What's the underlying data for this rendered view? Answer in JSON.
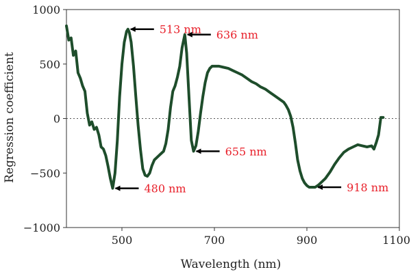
{
  "chart_data": {
    "type": "line",
    "xlabel": "Wavelength (nm)",
    "ylabel": "Regression coefficient",
    "xlim": [
      380,
      1100
    ],
    "ylim": [
      -1000,
      1000
    ],
    "x_ticks": [
      500,
      700,
      900,
      1100
    ],
    "y_ticks": [
      1000,
      500,
      0,
      -500,
      -1000
    ],
    "x_tick_labels": [
      "500",
      "700",
      "900",
      "1100"
    ],
    "y_tick_labels": [
      "1000",
      "500",
      "0",
      "−500",
      "−1000"
    ],
    "zero_line": true,
    "grid": false,
    "line_color": "#1e4d2b",
    "annotation_color": "#e8202a",
    "series": [
      {
        "x": [
          380,
          385,
          390,
          395,
          400,
          405,
          410,
          415,
          420,
          425,
          430,
          435,
          440,
          445,
          450,
          455,
          460,
          465,
          470,
          475,
          480,
          485,
          490,
          495,
          500,
          505,
          510,
          513,
          516,
          520,
          525,
          530,
          535,
          540,
          545,
          550,
          555,
          560,
          565,
          570,
          575,
          580,
          585,
          590,
          595,
          600,
          605,
          610,
          615,
          620,
          625,
          630,
          636,
          640,
          645,
          650,
          655,
          660,
          665,
          670,
          675,
          680,
          685,
          690,
          695,
          700,
          705,
          710,
          720,
          730,
          740,
          750,
          760,
          770,
          780,
          790,
          800,
          810,
          820,
          830,
          840,
          850,
          855,
          860,
          865,
          870,
          875,
          880,
          885,
          890,
          895,
          900,
          905,
          910,
          918,
          925,
          930,
          940,
          950,
          960,
          970,
          980,
          990,
          1000,
          1010,
          1020,
          1030,
          1040,
          1045,
          1050,
          1055,
          1060,
          1065
        ],
        "y": [
          850,
          720,
          740,
          580,
          620,
          420,
          370,
          300,
          250,
          50,
          -60,
          -30,
          -100,
          -80,
          -150,
          -260,
          -280,
          -340,
          -440,
          -550,
          -640,
          -500,
          -200,
          200,
          500,
          700,
          800,
          820,
          790,
          700,
          480,
          200,
          -60,
          -280,
          -460,
          -520,
          -530,
          -500,
          -430,
          -380,
          -360,
          -340,
          -320,
          -300,
          -230,
          -100,
          100,
          250,
          300,
          380,
          480,
          650,
          770,
          600,
          200,
          -200,
          -300,
          -250,
          -120,
          50,
          200,
          330,
          420,
          460,
          480,
          480,
          480,
          480,
          470,
          460,
          440,
          420,
          400,
          370,
          340,
          320,
          290,
          270,
          240,
          210,
          180,
          150,
          120,
          80,
          20,
          -80,
          -220,
          -380,
          -480,
          -550,
          -590,
          -615,
          -630,
          -630,
          -630,
          -610,
          -590,
          -550,
          -490,
          -420,
          -360,
          -310,
          -280,
          -260,
          -240,
          -250,
          -260,
          -250,
          -280,
          -220,
          -150,
          10,
          10
        ]
      }
    ],
    "annotations": [
      {
        "text": "513 nm",
        "x": 513,
        "y": 820
      },
      {
        "text": "636 nm",
        "x": 636,
        "y": 770
      },
      {
        "text": "655 nm",
        "x": 655,
        "y": -300
      },
      {
        "text": "480 nm",
        "x": 480,
        "y": -640
      },
      {
        "text": "918 nm",
        "x": 918,
        "y": -630
      }
    ]
  }
}
